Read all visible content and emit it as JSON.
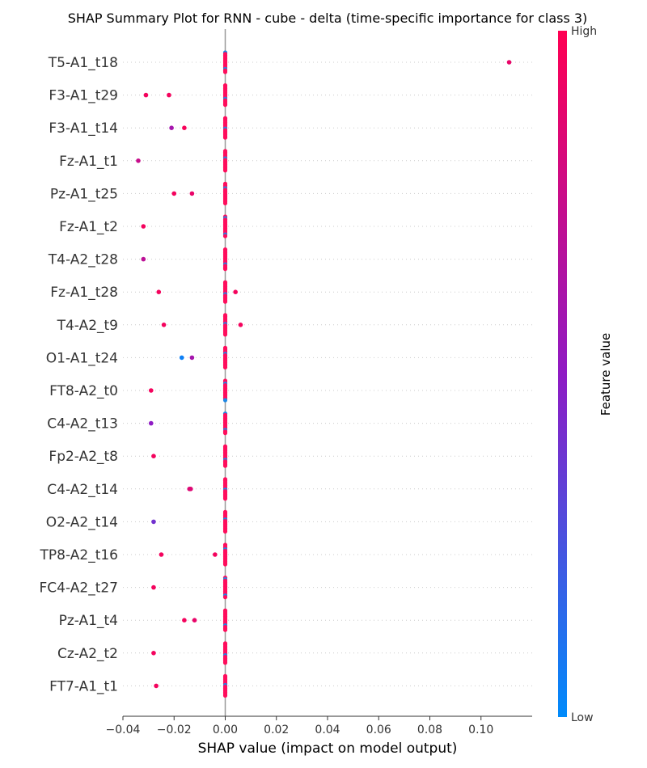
{
  "chart_data": {
    "type": "scatter",
    "title": "SHAP Summary Plot for RNN - cube - delta (time-specific importance for class 3)",
    "xlabel": "SHAP value (impact on model output)",
    "xlim": [
      -0.04,
      0.12
    ],
    "xticks": [
      "−0.04",
      "−0.02",
      "0.00",
      "0.02",
      "0.04",
      "0.06",
      "0.08",
      "0.10"
    ],
    "xtick_values": [
      -0.04,
      -0.02,
      0.0,
      0.02,
      0.04,
      0.06,
      0.08,
      0.1
    ],
    "colorbar": {
      "label": "Feature value",
      "high": "High",
      "low": "Low",
      "high_color": "#ff0052",
      "mid_color": "#8f1bc4",
      "low_color": "#008bfb"
    },
    "features": [
      {
        "name": "T5-A1_t18",
        "outliers": [
          {
            "x": 0.111,
            "value": 0.9
          }
        ]
      },
      {
        "name": "F3-A1_t29",
        "outliers": [
          {
            "x": -0.031,
            "value": 0.95
          },
          {
            "x": -0.022,
            "value": 0.95
          }
        ]
      },
      {
        "name": "F3-A1_t14",
        "outliers": [
          {
            "x": -0.021,
            "value": 0.6
          },
          {
            "x": -0.016,
            "value": 0.97
          }
        ]
      },
      {
        "name": "Fz-A1_t1",
        "outliers": [
          {
            "x": -0.034,
            "value": 0.75
          }
        ]
      },
      {
        "name": "Pz-A1_t25",
        "outliers": [
          {
            "x": -0.02,
            "value": 0.95
          },
          {
            "x": -0.013,
            "value": 0.9
          }
        ]
      },
      {
        "name": "Fz-A1_t2",
        "outliers": [
          {
            "x": -0.032,
            "value": 0.95
          }
        ]
      },
      {
        "name": "T4-A2_t28",
        "outliers": [
          {
            "x": -0.032,
            "value": 0.7
          }
        ]
      },
      {
        "name": "Fz-A1_t28",
        "outliers": [
          {
            "x": -0.026,
            "value": 0.95
          },
          {
            "x": 0.004,
            "value": 0.95
          }
        ]
      },
      {
        "name": "T4-A2_t9",
        "outliers": [
          {
            "x": -0.024,
            "value": 0.95
          },
          {
            "x": 0.006,
            "value": 0.95
          }
        ]
      },
      {
        "name": "O1-A1_t24",
        "outliers": [
          {
            "x": -0.017,
            "value": 0.05
          },
          {
            "x": -0.013,
            "value": 0.6
          }
        ]
      },
      {
        "name": "FT8-A2_t0",
        "outliers": [
          {
            "x": -0.029,
            "value": 0.95
          }
        ]
      },
      {
        "name": "C4-A2_t13",
        "outliers": [
          {
            "x": -0.029,
            "value": 0.5
          }
        ]
      },
      {
        "name": "Fp2-A2_t8",
        "outliers": [
          {
            "x": -0.028,
            "value": 0.95
          }
        ]
      },
      {
        "name": "C4-A2_t14",
        "outliers": [
          {
            "x": -0.014,
            "value": 0.85
          },
          {
            "x": -0.0135,
            "value": 0.85
          }
        ]
      },
      {
        "name": "O2-A2_t14",
        "outliers": [
          {
            "x": -0.028,
            "value": 0.4
          }
        ]
      },
      {
        "name": "TP8-A2_t16",
        "outliers": [
          {
            "x": -0.025,
            "value": 0.95
          },
          {
            "x": -0.004,
            "value": 0.95
          }
        ]
      },
      {
        "name": "FC4-A2_t27",
        "outliers": [
          {
            "x": -0.028,
            "value": 0.95
          }
        ]
      },
      {
        "name": "Pz-A1_t4",
        "outliers": [
          {
            "x": -0.016,
            "value": 0.95
          },
          {
            "x": -0.012,
            "value": 0.9
          }
        ]
      },
      {
        "name": "Cz-A2_t2",
        "outliers": [
          {
            "x": -0.028,
            "value": 0.95
          }
        ]
      },
      {
        "name": "FT7-A1_t1",
        "outliers": [
          {
            "x": -0.027,
            "value": 0.95
          }
        ]
      }
    ]
  }
}
